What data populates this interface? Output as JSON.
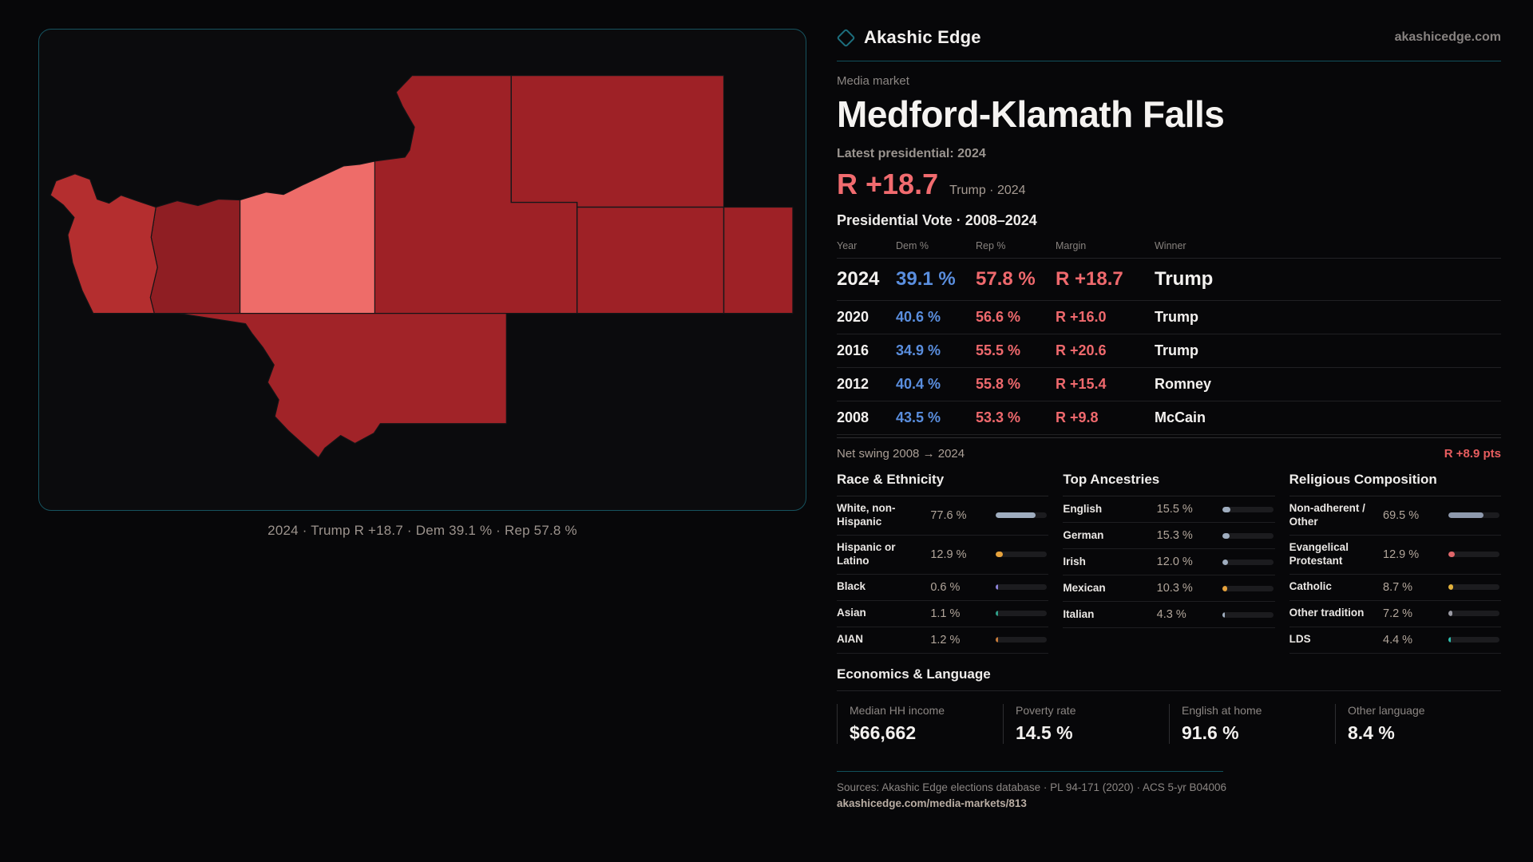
{
  "brand": {
    "name": "Akashic Edge",
    "site": "akashicedge.com",
    "accent": "#1d6f7e"
  },
  "map": {
    "caption": "2024 · Trump R +18.7 · Dem 39.1 % · Rep 57.8 %",
    "county_fills": [
      "#9e2126",
      "#ee6c69",
      "#8f1e23",
      "#b42e2f",
      "#a12328"
    ]
  },
  "header": {
    "kicker": "Media market",
    "title": "Medford-Klamath Falls",
    "latest_label": "Latest presidential: 2024",
    "margin_value": "R +18.7",
    "margin_context": "Trump · 2024"
  },
  "table": {
    "title": "Presidential Vote · 2008–2024",
    "columns": [
      "Year",
      "Dem %",
      "Rep %",
      "Margin",
      "Winner"
    ],
    "rows": [
      {
        "year": "2024",
        "dem": "39.1 %",
        "rep": "57.8 %",
        "margin": "R +18.7",
        "winner": "Trump"
      },
      {
        "year": "2020",
        "dem": "40.6 %",
        "rep": "56.6 %",
        "margin": "R +16.0",
        "winner": "Trump"
      },
      {
        "year": "2016",
        "dem": "34.9 %",
        "rep": "55.5 %",
        "margin": "R +20.6",
        "winner": "Trump"
      },
      {
        "year": "2012",
        "dem": "40.4 %",
        "rep": "55.8 %",
        "margin": "R +15.4",
        "winner": "Romney"
      },
      {
        "year": "2008",
        "dem": "43.5 %",
        "rep": "53.3 %",
        "margin": "R +9.8",
        "winner": "McCain"
      }
    ],
    "net_swing_label": "Net swing 2008 → 2024",
    "net_swing_value": "R +8.9 pts"
  },
  "demographics": {
    "race": {
      "title": "Race & Ethnicity",
      "rows": [
        {
          "label": "White, non-Hispanic",
          "value": "77.6 %",
          "pct": 77.6,
          "color": "#9fadbf"
        },
        {
          "label": "Hispanic or Latino",
          "value": "12.9 %",
          "pct": 12.9,
          "color": "#e6a23c"
        },
        {
          "label": "Black",
          "value": "0.6 %",
          "pct": 0.6,
          "color": "#8c82d8"
        },
        {
          "label": "Asian",
          "value": "1.1 %",
          "pct": 1.1,
          "color": "#2fa08a"
        },
        {
          "label": "AIAN",
          "value": "1.2 %",
          "pct": 1.2,
          "color": "#c87b3a"
        }
      ]
    },
    "ancestries": {
      "title": "Top Ancestries",
      "rows": [
        {
          "label": "English",
          "value": "15.5 %",
          "pct": 15.5,
          "color": "#9fadbf"
        },
        {
          "label": "German",
          "value": "15.3 %",
          "pct": 15.3,
          "color": "#9fadbf"
        },
        {
          "label": "Irish",
          "value": "12.0 %",
          "pct": 12.0,
          "color": "#9fadbf"
        },
        {
          "label": "Mexican",
          "value": "10.3 %",
          "pct": 10.3,
          "color": "#e6a23c"
        },
        {
          "label": "Italian",
          "value": "4.3 %",
          "pct": 4.3,
          "color": "#9fadbf"
        }
      ]
    },
    "religion": {
      "title": "Religious Composition",
      "rows": [
        {
          "label": "Non-adherent / Other",
          "value": "69.5 %",
          "pct": 69.5,
          "color": "#8e99ad"
        },
        {
          "label": "Evangelical Protestant",
          "value": "12.9 %",
          "pct": 12.9,
          "color": "#e0666a"
        },
        {
          "label": "Catholic",
          "value": "8.7 %",
          "pct": 8.7,
          "color": "#e3b23c"
        },
        {
          "label": "Other tradition",
          "value": "7.2 %",
          "pct": 7.2,
          "color": "#9a9aa3"
        },
        {
          "label": "LDS",
          "value": "4.4 %",
          "pct": 4.4,
          "color": "#2fbfae"
        }
      ]
    }
  },
  "economics": {
    "title": "Economics & Language",
    "stats": [
      {
        "label": "Median HH income",
        "value": "$66,662"
      },
      {
        "label": "Poverty rate",
        "value": "14.5 %"
      },
      {
        "label": "English at home",
        "value": "91.6 %"
      },
      {
        "label": "Other language",
        "value": "8.4 %"
      }
    ]
  },
  "footer": {
    "sources": "Sources: Akashic Edge elections database · PL 94-171 (2020) · ACS 5-yr B04006",
    "link": "akashicedge.com/media-markets/813"
  }
}
